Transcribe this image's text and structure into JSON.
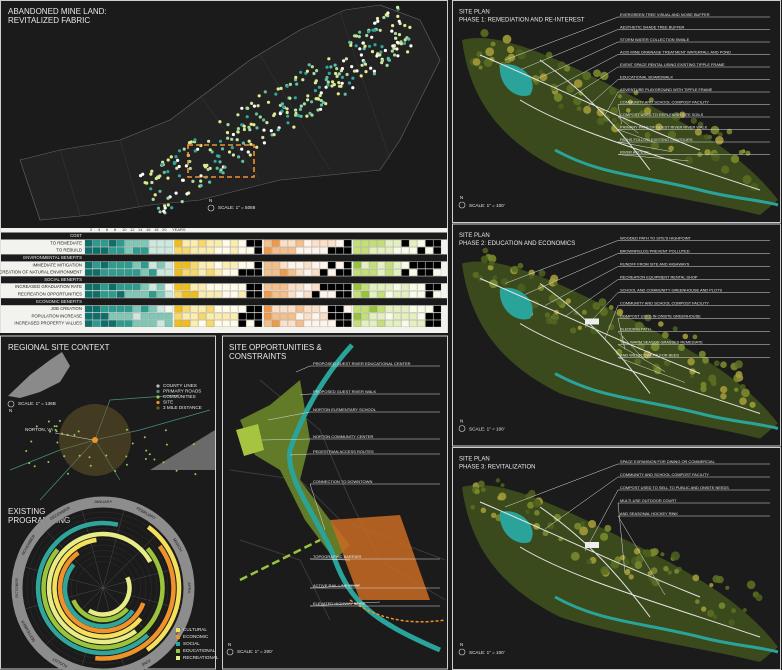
{
  "mine_land": {
    "title": [
      "ABANDONED MINE LAND:",
      "REVITALIZED FABRIC"
    ],
    "north": "N",
    "scale": "SCALE: 1\" = 5068",
    "matrix": {
      "years": [
        "2",
        "4",
        "6",
        "8",
        "10",
        "12",
        "14",
        "16",
        "18",
        "20"
      ],
      "unit": "YEARS",
      "rows": [
        "COST",
        "TO REMEDIATE",
        "TO REBUILD",
        "ENVIRONMENTAL BENEFITS",
        "IMMEDIATE MITIGATION",
        "CREATION OF NATURAL ENVIRONMENT",
        "SOCIAL BENEFITS",
        "INCREASED GRADUATION RATE",
        "RECREATION OPPORTUNITIES",
        "ECONOMIC BENEFITS",
        "JOB CREATION",
        "POPULATION INCREASE",
        "INCREASED PROPERTY VALUES"
      ]
    }
  },
  "regional": {
    "title": "REGIONAL SITE CONTEXT",
    "north": "N",
    "scale": "SCALE: 1\" = 136B",
    "place": "NORTON, VA",
    "legend": [
      "COUNTY LINES",
      "PRIMARY ROADS",
      "COMMUNITIES",
      "SITE",
      "3 MILE DISTANCE"
    ]
  },
  "programming": {
    "title": [
      "EXISTING",
      "PROGRAMMING"
    ],
    "months": [
      "JANUARY",
      "FEBRUARY",
      "MARCH",
      "APRIL",
      "MAY",
      "JUNE",
      "JULY",
      "AUGUST",
      "SEPTEMBER",
      "OCTOBER",
      "NOVEMBER",
      "DECEMBER"
    ],
    "legend": [
      "CULTURAL",
      "ECONOMIC",
      "SOCIAL",
      "EDUCATIONAL",
      "RECREATIONAL"
    ]
  },
  "site": {
    "title": [
      "SITE OPPORTUNITIES &",
      "CONSTRAINTS"
    ],
    "north": "N",
    "scale": "SCALE: 1\" = 200'",
    "labels": [
      "PROPOSED GUEST RIVER EDUCATIONAL CENTER",
      "PROPOSED GUEST RIVER WALK",
      "NORTON ELEMENTARY SCHOOL",
      "NORTON COMMUNITY CENTER",
      "PEDESTRIAN ACCESS ROUTES",
      "CONNECTION TO DOWNTOWN",
      "TOPOGRAPHIC BARRIER",
      "ACTIVE RAIL LINE EDGE",
      "ELEVATED HIGHWAY EDGE"
    ]
  },
  "phases": [
    {
      "heading": "SITE PLAN",
      "title": "PHASE 1: REMEDIATION AND RE-INTEREST",
      "north": "N",
      "scale": "SCALE: 1\" = 100'",
      "labels": [
        "EVERGREEN TREE VISUAL AND NOISE BUFFER",
        "AESTHETIC SHADE TREE BUFFER",
        "STORM WATER COLLECTION SWALE",
        "ACID MINE DRAINAGE TREATMENT WATERFALL AND POND",
        "EVENT SPACE RENTAL USING EXISTING TIPPLE FRAME",
        "EDUCATIONAL BOARDWALK",
        "ADVENTURE PLAYGROUND WITH TIPPLE FRAME",
        "COMMUNITY AND SCHOOL COMPOST FACILITY",
        "COMPOST USED TO REPLENISH SITE SOILS",
        "PRIMARY PATH OF GUEST RIVER RIVER WALK",
        "PATHS FOLLOW EXISTING CONTOURS",
        "RIVER ACCESS"
      ]
    },
    {
      "heading": "SITE PLAN",
      "title": "PHASE 2: EDUCATION AND ECONOMICS",
      "north": "N",
      "scale": "SCALE: 1\" = 100'",
      "labels": [
        "WOODED PATH TO SITE'S HIGHPOINT",
        "BROWNFIELDS PREVENT POLLUTED",
        "RUNOFF FROM SITE AND HIGHWAYS",
        "RECREATION EQUIPMENT RENTAL SHOP",
        "SCHOOL AND COMMUNITY GREENHOUSE AND PLOTS",
        "COMMUNITY AND SCHOOL COMPOST FACILITY",
        "COMPOST USED IN ONSITE GREENHOUSE",
        "SLEDDING PATH",
        "TALL WARM SEASON GRASSES REMEDIATE",
        "AND WILDFLOWERS FOR BEES"
      ]
    },
    {
      "heading": "SITE PLAN",
      "title": "PHASE 3: REVITALIZATION",
      "north": "N",
      "scale": "SCALE: 1\" = 100'",
      "labels": [
        "SPACE EXPANSION FOR DINING OR COMMERCIAL",
        "COMMUNITY AND SCHOOL COMPOST FACILITY",
        "COMPOST USED TO SELL TO PUBLIC AND ONSITE NEEDS",
        "MULTI-USE OUTDOOR COURT",
        "AND SEASONAL HOCKEY RINK"
      ]
    }
  ]
}
